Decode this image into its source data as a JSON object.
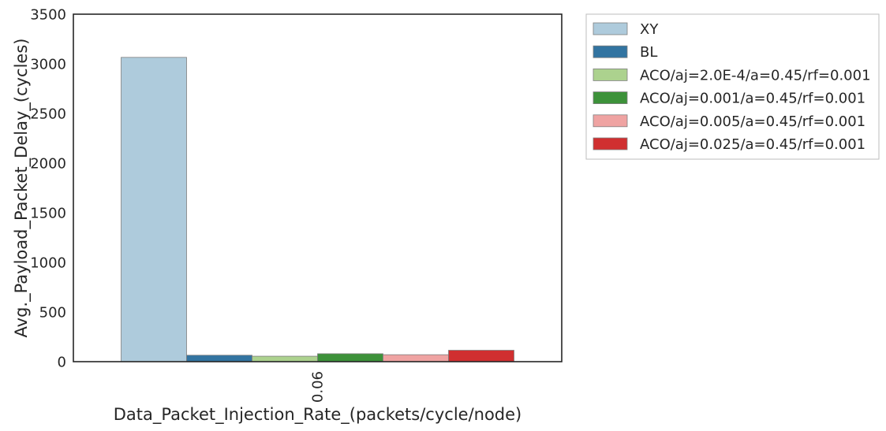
{
  "chart_data": {
    "type": "bar",
    "categories": [
      "0.06"
    ],
    "xlabel": "Data_Packet_Injection_Rate_(packets/cycle/node)",
    "ylabel": "Avg._Payload_Packet_Delay_(cycles)",
    "ylim": [
      0,
      3500
    ],
    "yticks": [
      0,
      500,
      1000,
      1500,
      2000,
      2500,
      3000,
      3500
    ],
    "grid": false,
    "legend_position": "outside-top-right",
    "series": [
      {
        "name": "XY",
        "values": [
          3065
        ],
        "color": "#aecbdc"
      },
      {
        "name": "BL",
        "values": [
          65
        ],
        "color": "#3274a1"
      },
      {
        "name": "ACO/aj=2.0E-4/a=0.45/rf=0.001",
        "values": [
          55
        ],
        "color": "#acd28e"
      },
      {
        "name": "ACO/aj=0.001/a=0.45/rf=0.001",
        "values": [
          80
        ],
        "color": "#3d923a"
      },
      {
        "name": "ACO/aj=0.005/a=0.45/rf=0.001",
        "values": [
          70
        ],
        "color": "#efa3a2"
      },
      {
        "name": "ACO/aj=0.025/a=0.45/rf=0.001",
        "values": [
          115
        ],
        "color": "#d02f30"
      }
    ]
  }
}
